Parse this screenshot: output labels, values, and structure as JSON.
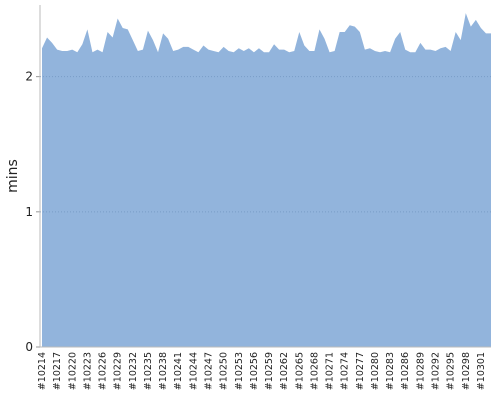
{
  "chart_data": {
    "type": "area",
    "y_label": "mins",
    "categories": [
      "#10214",
      null,
      null,
      "#10217",
      null,
      null,
      "#10220",
      null,
      null,
      "#10223",
      null,
      null,
      "#10226",
      null,
      null,
      "#10229",
      null,
      null,
      "#10232",
      null,
      null,
      "#10235",
      null,
      null,
      "#10238",
      null,
      null,
      "#10241",
      null,
      null,
      "#10244",
      null,
      null,
      "#10247",
      null,
      null,
      "#10250",
      null,
      null,
      "#10253",
      null,
      null,
      "#10256",
      null,
      null,
      "#10259",
      null,
      null,
      "#10262",
      null,
      null,
      "#10265",
      null,
      null,
      "#10268",
      null,
      null,
      "#10271",
      null,
      null,
      "#10274",
      null,
      null,
      "#10277",
      null,
      null,
      "#10280",
      null,
      null,
      "#10283",
      null,
      null,
      "#10286",
      null,
      null,
      "#10289",
      null,
      null,
      "#10292",
      null,
      null,
      "#10295",
      null,
      null,
      "#10298",
      null,
      null,
      "#10301",
      null,
      null
    ],
    "values": [
      2.21,
      2.29,
      2.25,
      2.2,
      2.19,
      2.19,
      2.2,
      2.18,
      2.24,
      2.35,
      2.18,
      2.2,
      2.18,
      2.33,
      2.29,
      2.43,
      2.36,
      2.35,
      2.27,
      2.19,
      2.2,
      2.34,
      2.27,
      2.18,
      2.32,
      2.28,
      2.19,
      2.2,
      2.22,
      2.22,
      2.2,
      2.18,
      2.23,
      2.2,
      2.19,
      2.18,
      2.22,
      2.19,
      2.18,
      2.21,
      2.19,
      2.21,
      2.18,
      2.21,
      2.18,
      2.18,
      2.24,
      2.2,
      2.2,
      2.18,
      2.19,
      2.33,
      2.23,
      2.19,
      2.19,
      2.35,
      2.28,
      2.18,
      2.19,
      2.33,
      2.33,
      2.38,
      2.37,
      2.33,
      2.2,
      2.21,
      2.19,
      2.18,
      2.19,
      2.18,
      2.28,
      2.33,
      2.2,
      2.18,
      2.18,
      2.25,
      2.2,
      2.2,
      2.19,
      2.21,
      2.22,
      2.19,
      2.33,
      2.27,
      2.47,
      2.37,
      2.42,
      2.36,
      2.32,
      2.32
    ],
    "color": "#92b4dc",
    "ylim": [
      0,
      2.53
    ],
    "yticks": [
      0,
      1,
      2
    ],
    "grid": true
  }
}
